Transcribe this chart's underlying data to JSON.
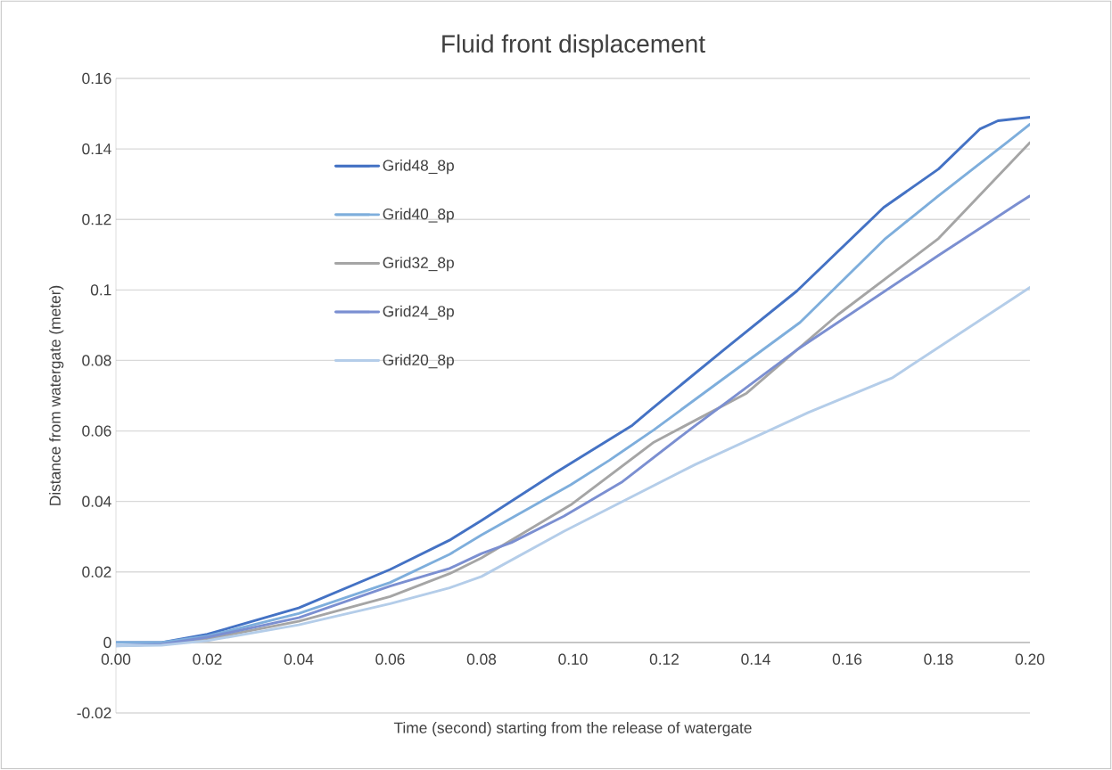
{
  "chart_data": {
    "type": "line",
    "title": "Fluid front displacement",
    "xlabel": "Time (second) starting from the release of watergate",
    "ylabel": "Distance from watergate (meter)",
    "xlim": [
      0,
      0.2
    ],
    "ylim": [
      -0.02,
      0.16
    ],
    "xticks": [
      {
        "value": 0,
        "label": "0.00"
      },
      {
        "value": 0.02,
        "label": "0.02"
      },
      {
        "value": 0.04,
        "label": "0.04"
      },
      {
        "value": 0.06,
        "label": "0.06"
      },
      {
        "value": 0.08,
        "label": "0.08"
      },
      {
        "value": 0.1,
        "label": "0.10"
      },
      {
        "value": 0.12,
        "label": "0.12"
      },
      {
        "value": 0.14,
        "label": "0.14"
      },
      {
        "value": 0.16,
        "label": "0.16"
      },
      {
        "value": 0.18,
        "label": "0.18"
      },
      {
        "value": 0.2,
        "label": "0.20"
      }
    ],
    "yticks": [
      -0.02,
      0,
      0.02,
      0.04,
      0.06,
      0.08,
      0.1,
      0.12,
      0.14,
      0.16
    ],
    "grid": "y",
    "legend": "top left",
    "marker": "none",
    "line_style": "solid",
    "series": [
      {
        "name": "Grid48_8p",
        "color": "#4472c4",
        "x": [
          0,
          0.01,
          0.02,
          0.04,
          0.06,
          0.073,
          0.08,
          0.096,
          0.113,
          0.117,
          0.133,
          0.149,
          0.168,
          0.18,
          0.189,
          0.193,
          0.2
        ],
        "values": [
          0,
          0,
          0.0023,
          0.0098,
          0.0207,
          0.029,
          0.0346,
          0.048,
          0.0616,
          0.066,
          0.083,
          0.0997,
          0.1234,
          0.1343,
          0.1456,
          0.148,
          0.149
        ]
      },
      {
        "name": "Grid40_8p",
        "color": "#7eaedc",
        "x": [
          0,
          0.01,
          0.02,
          0.04,
          0.06,
          0.073,
          0.08,
          0.0995,
          0.108,
          0.1177,
          0.1497,
          0.1684,
          0.18,
          0.1957,
          0.2
        ],
        "values": [
          0,
          0,
          0.0018,
          0.0082,
          0.017,
          0.025,
          0.0305,
          0.0447,
          0.0517,
          0.0603,
          0.0908,
          0.1146,
          0.1267,
          0.1426,
          0.147
        ]
      },
      {
        "name": "Grid32_8p",
        "color": "#a5a5a5",
        "x": [
          0.01,
          0.02,
          0.04,
          0.06,
          0.073,
          0.08,
          0.0995,
          0.1177,
          0.138,
          0.158,
          0.18,
          0.2
        ],
        "values": [
          -0.0005,
          0.001,
          0.006,
          0.013,
          0.0195,
          0.024,
          0.039,
          0.0568,
          0.0707,
          0.093,
          0.1146,
          0.1418
        ]
      },
      {
        "name": "Grid24_8p",
        "color": "#7b8fd1",
        "x": [
          0,
          0.01,
          0.02,
          0.04,
          0.06,
          0.073,
          0.08,
          0.0865,
          0.098,
          0.1106,
          0.1255,
          0.149,
          0.18,
          0.197,
          0.2
        ],
        "values": [
          -0.001,
          -0.0005,
          0.0015,
          0.007,
          0.016,
          0.021,
          0.0252,
          0.0283,
          0.0358,
          0.0454,
          0.0603,
          0.083,
          0.1098,
          0.1242,
          0.1267
        ]
      },
      {
        "name": "Grid20_8p",
        "color": "#b4cde9",
        "x": [
          0,
          0.01,
          0.02,
          0.04,
          0.06,
          0.073,
          0.08,
          0.098,
          0.1268,
          0.1516,
          0.1698,
          0.2
        ],
        "values": [
          -0.001,
          -0.0008,
          0.0005,
          0.005,
          0.011,
          0.0155,
          0.0187,
          0.0315,
          0.0505,
          0.0653,
          0.075,
          0.1007
        ]
      }
    ]
  }
}
